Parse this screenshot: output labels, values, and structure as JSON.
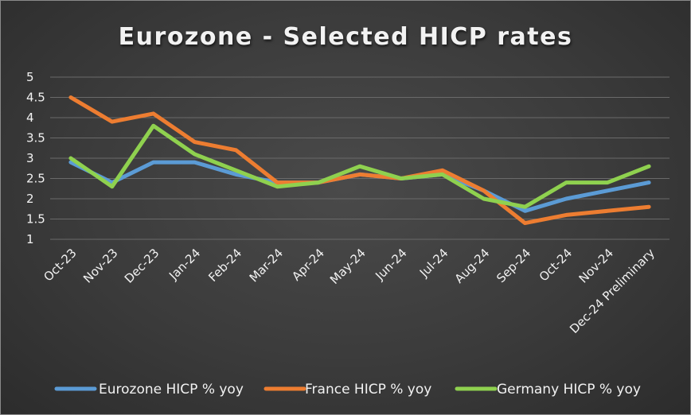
{
  "chart_data": {
    "type": "line",
    "title": "Eurozone - Selected HICP rates",
    "xlabel": "",
    "ylabel": "",
    "ylim": [
      1,
      5
    ],
    "yticks": [
      "1",
      "1.5",
      "2",
      "2.5",
      "3",
      "3.5",
      "4",
      "4.5",
      "5"
    ],
    "grid": true,
    "legend_position": "bottom",
    "categories": [
      "Oct-23",
      "Nov-23",
      "Dec-23",
      "Jan-24",
      "Feb-24",
      "Mar-24",
      "Apr-24",
      "May-24",
      "Jun-24",
      "Jul-24",
      "Aug-24",
      "Sep-24",
      "Oct-24",
      "Nov-24",
      "Dec-24 Preliminary"
    ],
    "series": [
      {
        "name": "Eurozone HICP % yoy",
        "color": "#5b9bd5",
        "values": [
          2.9,
          2.4,
          2.9,
          2.9,
          2.6,
          2.4,
          2.4,
          2.6,
          2.5,
          2.6,
          2.2,
          1.7,
          2.0,
          2.2,
          2.4
        ]
      },
      {
        "name": "France HICP % yoy",
        "color": "#ed7d31",
        "values": [
          4.5,
          3.9,
          4.1,
          3.4,
          3.2,
          2.4,
          2.4,
          2.6,
          2.5,
          2.7,
          2.2,
          1.4,
          1.6,
          1.7,
          1.8
        ]
      },
      {
        "name": "Germany HICP % yoy",
        "color": "#8fd14f",
        "values": [
          3.0,
          2.3,
          3.8,
          3.1,
          2.7,
          2.3,
          2.4,
          2.8,
          2.5,
          2.6,
          2.0,
          1.8,
          2.4,
          2.4,
          2.8
        ]
      }
    ]
  }
}
